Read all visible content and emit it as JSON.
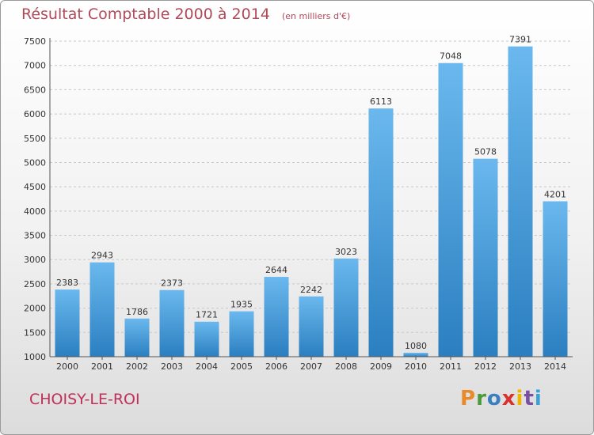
{
  "header": {
    "title": "Résultat Comptable 2000 à 2014",
    "subtitle": "(en milliers d'€)"
  },
  "footer": {
    "commune": "CHOISY-LE-ROI",
    "logo_letters": [
      {
        "char": "P",
        "color": "#e8892b"
      },
      {
        "char": "r",
        "color": "#4a9a3a"
      },
      {
        "char": "o",
        "color": "#3a7fc2"
      },
      {
        "char": "x",
        "color": "#d9322e"
      },
      {
        "char": "i",
        "color": "#f0b400"
      },
      {
        "char": "t",
        "color": "#7a4fa0"
      },
      {
        "char": "i",
        "color": "#3aa0d8"
      }
    ]
  },
  "colors": {
    "bar_light": "#6ab8ee",
    "bar_dark": "#2b7fc0",
    "title": "#b04a5a",
    "commune": "#c0305a"
  },
  "chart_data": {
    "type": "bar",
    "categories": [
      "2000",
      "2001",
      "2002",
      "2003",
      "2004",
      "2005",
      "2006",
      "2007",
      "2008",
      "2009",
      "2010",
      "2011",
      "2012",
      "2013",
      "2014"
    ],
    "values": [
      2383,
      2943,
      1786,
      2373,
      1721,
      1935,
      2644,
      2242,
      3023,
      6113,
      1080,
      7048,
      5078,
      7391,
      4201
    ],
    "title": "Résultat Comptable 2000 à 2014",
    "subtitle": "(en milliers d'€)",
    "xlabel": "",
    "ylabel": "",
    "ylim": [
      1000,
      7500
    ],
    "yticks": [
      1000,
      1500,
      2000,
      2500,
      3000,
      3500,
      4000,
      4500,
      5000,
      5500,
      6000,
      6500,
      7000,
      7500
    ],
    "grid": true,
    "legend": "none"
  }
}
